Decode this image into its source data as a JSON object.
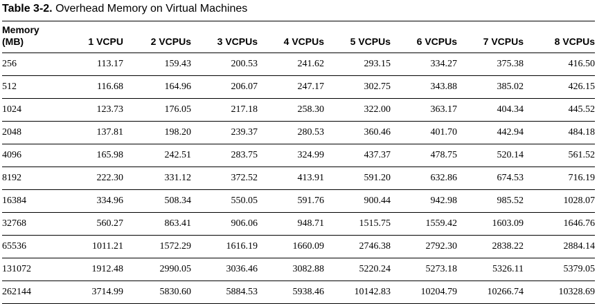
{
  "table": {
    "title_number": "Table 3-2.",
    "title_text": "Overhead Memory on Virtual Machines",
    "headers": [
      "Memory\n(MB)",
      "1 VCPU",
      "2 VCPUs",
      "3 VCPUs",
      "4 VCPUs",
      "5 VCPUs",
      "6 VCPUs",
      "7 VCPUs",
      "8 VCPUs"
    ],
    "rows": [
      [
        "256",
        "113.17",
        "159.43",
        "200.53",
        "241.62",
        "293.15",
        "334.27",
        "375.38",
        "416.50"
      ],
      [
        "512",
        "116.68",
        "164.96",
        "206.07",
        "247.17",
        "302.75",
        "343.88",
        "385.02",
        "426.15"
      ],
      [
        "1024",
        "123.73",
        "176.05",
        "217.18",
        "258.30",
        "322.00",
        "363.17",
        "404.34",
        "445.52"
      ],
      [
        "2048",
        "137.81",
        "198.20",
        "239.37",
        "280.53",
        "360.46",
        "401.70",
        "442.94",
        "484.18"
      ],
      [
        "4096",
        "165.98",
        "242.51",
        "283.75",
        "324.99",
        "437.37",
        "478.75",
        "520.14",
        "561.52"
      ],
      [
        "8192",
        "222.30",
        "331.12",
        "372.52",
        "413.91",
        "591.20",
        "632.86",
        "674.53",
        "716.19"
      ],
      [
        "16384",
        "334.96",
        "508.34",
        "550.05",
        "591.76",
        "900.44",
        "942.98",
        "985.52",
        "1028.07"
      ],
      [
        "32768",
        "560.27",
        "863.41",
        "906.06",
        "948.71",
        "1515.75",
        "1559.42",
        "1603.09",
        "1646.76"
      ],
      [
        "65536",
        "1011.21",
        "1572.29",
        "1616.19",
        "1660.09",
        "2746.38",
        "2792.30",
        "2838.22",
        "2884.14"
      ],
      [
        "131072",
        "1912.48",
        "2990.05",
        "3036.46",
        "3082.88",
        "5220.24",
        "5273.18",
        "5326.11",
        "5379.05"
      ],
      [
        "262144",
        "3714.99",
        "5830.60",
        "5884.53",
        "5938.46",
        "10142.83",
        "10204.79",
        "10266.74",
        "10328.69"
      ]
    ]
  }
}
